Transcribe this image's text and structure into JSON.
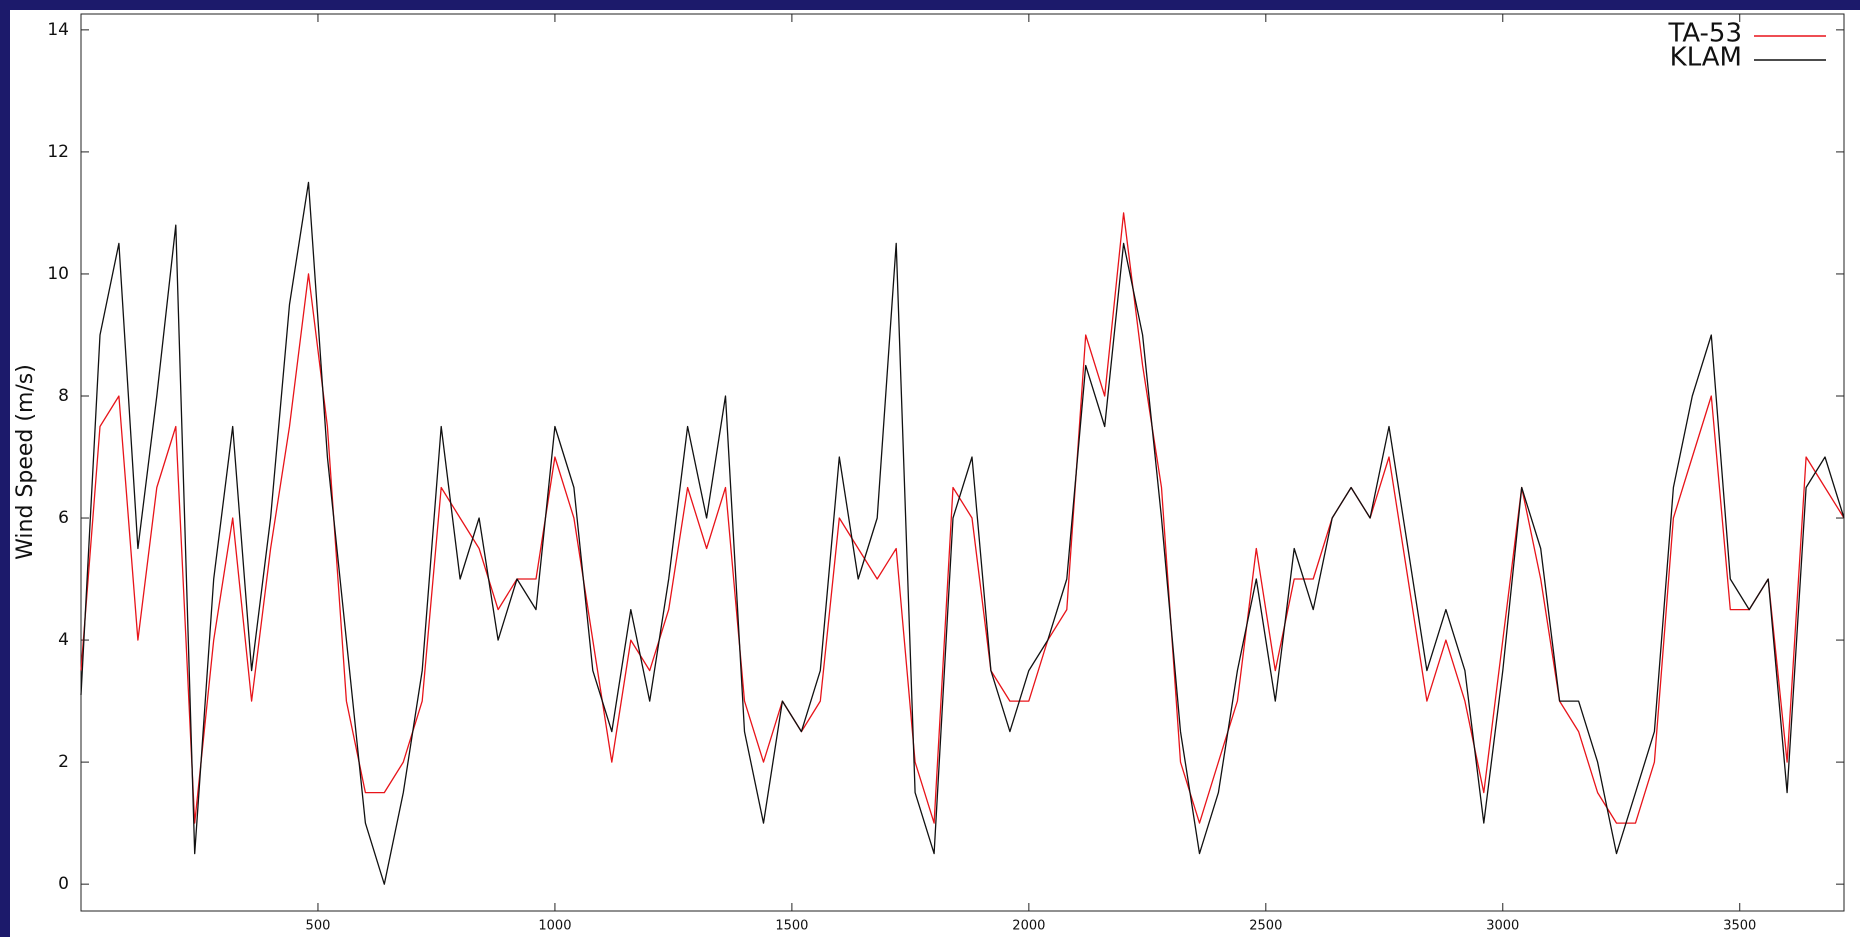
{
  "chart_data": {
    "type": "line",
    "y_label": "Wind Speed (m/s)",
    "xlim": [
      0,
      3720
    ],
    "ylim": [
      -0.44,
      14.26
    ],
    "xticks": [
      500,
      1000,
      1500,
      2000,
      2500,
      3000,
      3500
    ],
    "yticks": [
      0,
      2,
      4,
      6,
      8,
      10,
      12,
      14
    ],
    "grid": false,
    "legend": "upper right",
    "x": [
      0,
      40,
      80,
      120,
      160,
      200,
      240,
      280,
      320,
      360,
      400,
      440,
      480,
      520,
      560,
      600,
      640,
      680,
      720,
      760,
      800,
      840,
      880,
      920,
      960,
      1000,
      1040,
      1080,
      1120,
      1160,
      1200,
      1240,
      1280,
      1320,
      1360,
      1400,
      1440,
      1480,
      1520,
      1560,
      1600,
      1640,
      1680,
      1720,
      1760,
      1800,
      1840,
      1880,
      1920,
      1960,
      2000,
      2040,
      2080,
      2120,
      2160,
      2200,
      2240,
      2280,
      2320,
      2360,
      2400,
      2440,
      2480,
      2520,
      2560,
      2600,
      2640,
      2680,
      2720,
      2760,
      2800,
      2840,
      2880,
      2920,
      2960,
      3000,
      3040,
      3080,
      3120,
      3160,
      3200,
      3240,
      3280,
      3320,
      3360,
      3400,
      3440,
      3480,
      3520,
      3560,
      3600,
      3640,
      3680,
      3720
    ],
    "series": [
      {
        "name": "TA-53",
        "color": "#e8141a",
        "values": [
          3.5,
          7.5,
          8.0,
          4.0,
          6.5,
          7.5,
          1.0,
          4.0,
          6.0,
          3.0,
          5.5,
          7.5,
          10.0,
          7.5,
          3.0,
          1.5,
          1.5,
          2.0,
          3.0,
          6.5,
          6.0,
          5.5,
          4.5,
          5.0,
          5.0,
          7.0,
          6.0,
          4.0,
          2.0,
          4.0,
          3.5,
          4.5,
          6.5,
          5.5,
          6.5,
          3.0,
          2.0,
          3.0,
          2.5,
          3.0,
          6.0,
          5.5,
          5.0,
          5.5,
          2.0,
          1.0,
          6.5,
          6.0,
          3.5,
          3.0,
          3.0,
          4.0,
          4.5,
          9.0,
          8.0,
          11.0,
          8.5,
          6.5,
          2.0,
          1.0,
          2.0,
          3.0,
          5.5,
          3.5,
          5.0,
          5.0,
          6.0,
          6.5,
          6.0,
          7.0,
          5.0,
          3.0,
          4.0,
          3.0,
          1.5,
          4.0,
          6.5,
          5.0,
          3.0,
          2.5,
          1.5,
          1.0,
          1.0,
          2.0,
          6.0,
          7.0,
          8.0,
          4.5,
          4.5,
          5.0,
          2.0,
          7.0,
          6.5,
          6.0
        ]
      },
      {
        "name": "KLAM",
        "color": "#111111",
        "values": [
          3.1,
          9.0,
          10.5,
          5.5,
          8.0,
          10.8,
          0.5,
          5.0,
          7.5,
          3.5,
          6.0,
          9.5,
          11.5,
          7.0,
          4.0,
          1.0,
          0.0,
          1.5,
          3.5,
          7.5,
          5.0,
          6.0,
          4.0,
          5.0,
          4.5,
          7.5,
          6.5,
          3.5,
          2.5,
          4.5,
          3.0,
          5.0,
          7.5,
          6.0,
          8.0,
          2.5,
          1.0,
          3.0,
          2.5,
          3.5,
          7.0,
          5.0,
          6.0,
          10.5,
          1.5,
          0.5,
          6.0,
          7.0,
          3.5,
          2.5,
          3.5,
          4.0,
          5.0,
          8.5,
          7.5,
          10.5,
          9.0,
          6.0,
          2.5,
          0.5,
          1.5,
          3.5,
          5.0,
          3.0,
          5.5,
          4.5,
          6.0,
          6.5,
          6.0,
          7.5,
          5.5,
          3.5,
          4.5,
          3.5,
          1.0,
          3.5,
          6.5,
          5.5,
          3.0,
          3.0,
          2.0,
          0.5,
          1.5,
          2.5,
          6.5,
          8.0,
          9.0,
          5.0,
          4.5,
          5.0,
          1.5,
          6.5,
          7.0,
          6.0
        ]
      }
    ]
  }
}
